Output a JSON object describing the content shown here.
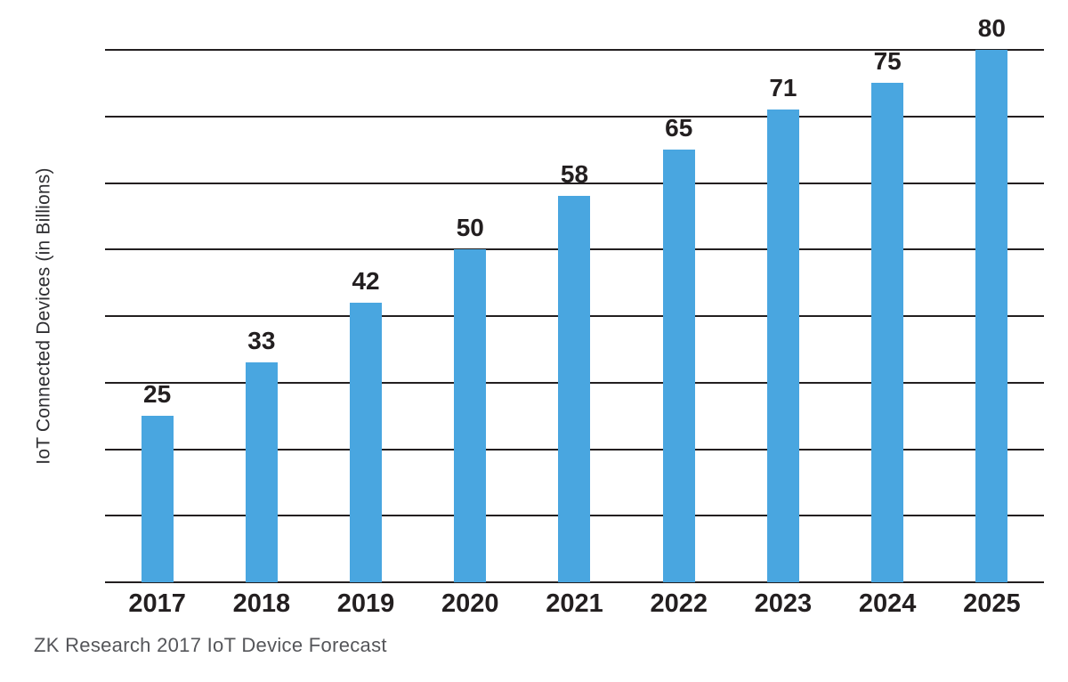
{
  "chart_data": {
    "type": "bar",
    "title": "",
    "xlabel": "",
    "ylabel": "IoT Connected Devices (in Billions)",
    "caption": "ZK Research 2017 IoT Device Forecast",
    "categories": [
      "2017",
      "2018",
      "2019",
      "2020",
      "2021",
      "2022",
      "2023",
      "2024",
      "2025"
    ],
    "values": [
      25,
      33,
      42,
      50,
      58,
      65,
      71,
      75,
      80
    ],
    "ylim": [
      0,
      80
    ],
    "gridline_step": 10,
    "grid": "horizontal-only",
    "y_tick_labels_shown": false,
    "legend_position": "none",
    "bar_color": "#49A6E0",
    "gridline_color": "#231F20",
    "label_color": "#231F20",
    "caption_color": "#55565A"
  }
}
